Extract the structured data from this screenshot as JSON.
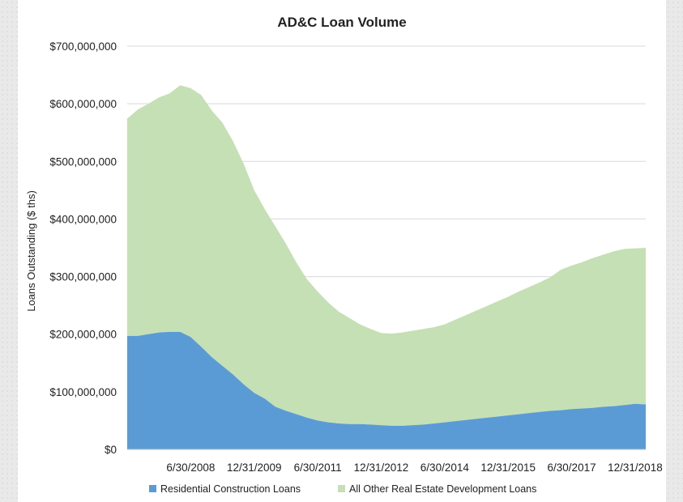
{
  "chart_data": {
    "type": "area",
    "stacked": true,
    "title": "AD&C Loan Volume",
    "xlabel": "",
    "ylabel": "Loans Outstanding ($ ths)",
    "ylim": [
      0,
      700000000
    ],
    "y_ticks": [
      {
        "value": 0,
        "label": "$0"
      },
      {
        "value": 100000000,
        "label": "$100,000,000"
      },
      {
        "value": 200000000,
        "label": "$200,000,000"
      },
      {
        "value": 300000000,
        "label": "$300,000,000"
      },
      {
        "value": 400000000,
        "label": "$400,000,000"
      },
      {
        "value": 500000000,
        "label": "$500,000,000"
      },
      {
        "value": 600000000,
        "label": "$600,000,000"
      },
      {
        "value": 700000000,
        "label": "$700,000,000"
      }
    ],
    "x_tick_labels": [
      {
        "index": 6,
        "label": "6/30/2008"
      },
      {
        "index": 12,
        "label": "12/31/2009"
      },
      {
        "index": 18,
        "label": "6/30/2011"
      },
      {
        "index": 24,
        "label": "12/31/2012"
      },
      {
        "index": 30,
        "label": "6/30/2014"
      },
      {
        "index": 36,
        "label": "12/31/2015"
      },
      {
        "index": 42,
        "label": "6/30/2017"
      },
      {
        "index": 48,
        "label": "12/31/2018"
      }
    ],
    "grid": true,
    "legend_position": "bottom",
    "series": [
      {
        "name": "Residential Construction Loans",
        "color": "#5b9bd5",
        "values": [
          197000000,
          197000000,
          200000000,
          203000000,
          204000000,
          204000000,
          195000000,
          178000000,
          160000000,
          145000000,
          130000000,
          113000000,
          98000000,
          88000000,
          74000000,
          67000000,
          61000000,
          55000000,
          50000000,
          47000000,
          45000000,
          44000000,
          44000000,
          43000000,
          42000000,
          41000000,
          41000000,
          42000000,
          43000000,
          45000000,
          47000000,
          49000000,
          51000000,
          53000000,
          55000000,
          57000000,
          59000000,
          61000000,
          63000000,
          65000000,
          67000000,
          68000000,
          70000000,
          71000000,
          72000000,
          74000000,
          75000000,
          77000000,
          79000000,
          78000000
        ]
      },
      {
        "name": "All Other Real Estate Development Loans",
        "color": "#c5e0b4",
        "values": [
          377000000,
          393000000,
          400000000,
          408000000,
          414000000,
          428000000,
          432000000,
          437000000,
          428000000,
          422000000,
          405000000,
          383000000,
          352000000,
          329000000,
          313000000,
          290000000,
          263000000,
          240000000,
          224000000,
          208000000,
          194000000,
          184000000,
          173000000,
          166000000,
          160000000,
          160000000,
          162000000,
          164000000,
          166000000,
          167000000,
          170000000,
          176000000,
          182000000,
          188000000,
          194000000,
          200000000,
          206000000,
          213000000,
          219000000,
          225000000,
          232000000,
          244000000,
          249000000,
          254000000,
          260000000,
          264000000,
          269000000,
          271000000,
          270000000,
          272000000
        ]
      }
    ]
  }
}
